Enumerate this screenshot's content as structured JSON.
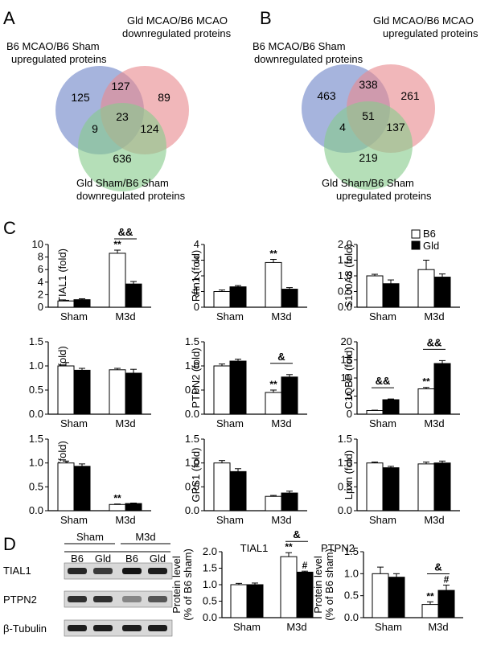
{
  "panel_letters": {
    "A": "A",
    "B": "B",
    "C": "C",
    "D": "D"
  },
  "venn_a": {
    "set_labels": [
      [
        "B6 MCAO/B6 Sham",
        "upregulated proteins"
      ],
      [
        "Gld MCAO/B6 MCAO",
        "downregulated proteins"
      ],
      [
        "Gld Sham/B6 Sham",
        "downregulated proteins"
      ]
    ],
    "counts": {
      "a_only": "125",
      "ab": "127",
      "b_only": "89",
      "ac": "9",
      "abc": "23",
      "bc": "124",
      "c_only": "636"
    }
  },
  "venn_b": {
    "set_labels": [
      [
        "B6 MCAO/B6 Sham",
        "downregulated proteins"
      ],
      [
        "Gld MCAO/B6 MCAO",
        "upregulated proteins"
      ],
      [
        "Gld Sham/B6 Sham",
        "upregulated proteins"
      ]
    ],
    "counts": {
      "a_only": "463",
      "ab": "338",
      "b_only": "261",
      "ac": "4",
      "abc": "51",
      "bc": "137",
      "c_only": "219"
    }
  },
  "venn_colors": {
    "blue": "#6f86c8",
    "red": "#e98a8f",
    "green": "#88cc8c"
  },
  "legend": {
    "items": [
      {
        "name": "B6",
        "color": "#ffffff"
      },
      {
        "name": "Gld",
        "color": "#000000"
      }
    ],
    "placement": "top-right of panel C"
  },
  "western_blot": {
    "group_labels": [
      "Sham",
      "M3d"
    ],
    "lane_labels": [
      "B6",
      "Gld",
      "B6",
      "Gld"
    ],
    "row_labels": [
      "TIAL1",
      "PTPN2",
      "β-Tubulin"
    ],
    "band_intensity": [
      [
        0.85,
        0.75,
        0.95,
        0.9
      ],
      [
        0.8,
        0.8,
        0.35,
        0.6
      ],
      [
        0.9,
        0.9,
        0.9,
        0.9
      ]
    ]
  },
  "chart_data": [
    {
      "type": "bar",
      "ylabel": "TIAL1 (fold)",
      "categories": [
        "Sham",
        "M3d"
      ],
      "ylim": [
        0,
        10
      ],
      "yticks": [
        0,
        2,
        4,
        6,
        8,
        10
      ],
      "series": [
        {
          "name": "B6",
          "values": [
            1.0,
            8.6
          ],
          "errors": [
            0.1,
            0.5
          ]
        },
        {
          "name": "Gld",
          "values": [
            1.2,
            3.7
          ],
          "errors": [
            0.15,
            0.4
          ]
        }
      ],
      "annotations": [
        {
          "text": "**",
          "category": 1,
          "series": 0
        },
        {
          "text": "&&",
          "bracket": [
            1,
            0,
            1,
            1
          ]
        }
      ]
    },
    {
      "type": "bar",
      "ylabel": "Rftn1 (fold)",
      "categories": [
        "Sham",
        "M3d"
      ],
      "ylim": [
        0,
        4
      ],
      "yticks": [
        0,
        1,
        2,
        3,
        4
      ],
      "series": [
        {
          "name": "B6",
          "values": [
            1.0,
            2.85
          ],
          "errors": [
            0.1,
            0.2
          ]
        },
        {
          "name": "Gld",
          "values": [
            1.3,
            1.15
          ],
          "errors": [
            0.08,
            0.1
          ]
        }
      ],
      "annotations": [
        {
          "text": "**",
          "category": 1,
          "series": 0
        }
      ]
    },
    {
      "type": "bar",
      "ylabel": "S100A8 (fold)",
      "categories": [
        "Sham",
        "M3d"
      ],
      "ylim": [
        0,
        2.0
      ],
      "yticks": [
        0,
        0.5,
        1.0,
        1.5,
        2.0
      ],
      "series": [
        {
          "name": "B6",
          "values": [
            1.0,
            1.2
          ],
          "errors": [
            0.05,
            0.3
          ]
        },
        {
          "name": "Gld",
          "values": [
            0.75,
            0.96
          ],
          "errors": [
            0.12,
            0.1
          ]
        }
      ],
      "annotations": []
    },
    {
      "type": "bar",
      "ylabel": "S100A9 (fold)",
      "categories": [
        "Sham",
        "M3d"
      ],
      "ylim": [
        0,
        1.5
      ],
      "yticks": [
        0,
        0.5,
        1.0,
        1.5
      ],
      "series": [
        {
          "name": "B6",
          "values": [
            1.0,
            0.92
          ],
          "errors": [
            0.07,
            0.03
          ]
        },
        {
          "name": "Gld",
          "values": [
            0.91,
            0.85
          ],
          "errors": [
            0.04,
            0.08
          ]
        }
      ],
      "annotations": []
    },
    {
      "type": "bar",
      "ylabel": "PTPN2 (fold)",
      "categories": [
        "Sham",
        "M3d"
      ],
      "ylim": [
        0,
        1.5
      ],
      "yticks": [
        0,
        0.5,
        1.0,
        1.5
      ],
      "series": [
        {
          "name": "B6",
          "values": [
            1.0,
            0.45
          ],
          "errors": [
            0.04,
            0.05
          ]
        },
        {
          "name": "Gld",
          "values": [
            1.1,
            0.77
          ],
          "errors": [
            0.04,
            0.05
          ]
        }
      ],
      "annotations": [
        {
          "text": "**",
          "category": 1,
          "series": 0
        },
        {
          "text": "&",
          "bracket": [
            1,
            0,
            1,
            1
          ]
        }
      ]
    },
    {
      "type": "bar",
      "ylabel": "C1QBP (fold)",
      "categories": [
        "Sham",
        "M3d"
      ],
      "ylim": [
        0,
        20
      ],
      "yticks": [
        0,
        5,
        10,
        15,
        20
      ],
      "series": [
        {
          "name": "B6",
          "values": [
            1.0,
            7.0
          ],
          "errors": [
            0.1,
            0.4
          ]
        },
        {
          "name": "Gld",
          "values": [
            4.0,
            14.0
          ],
          "errors": [
            0.2,
            0.8
          ]
        }
      ],
      "annotations": [
        {
          "text": "**",
          "category": 1,
          "series": 0
        },
        {
          "text": "&&",
          "bracket": [
            0,
            0,
            0,
            1
          ]
        },
        {
          "text": "&&",
          "bracket": [
            1,
            0,
            1,
            1
          ]
        }
      ]
    },
    {
      "type": "bar",
      "ylabel": "Sh3kbp1 (fold)",
      "categories": [
        "Sham",
        "M3d"
      ],
      "ylim": [
        0,
        1.5
      ],
      "yticks": [
        0,
        0.5,
        1.0,
        1.5
      ],
      "series": [
        {
          "name": "B6",
          "values": [
            1.0,
            0.13
          ],
          "errors": [
            0.04,
            0.01
          ]
        },
        {
          "name": "Gld",
          "values": [
            0.93,
            0.15
          ],
          "errors": [
            0.05,
            0.01
          ]
        }
      ],
      "annotations": [
        {
          "text": "**",
          "category": 1,
          "series": 0
        }
      ]
    },
    {
      "type": "bar",
      "ylabel": "GPS1 (fold)",
      "categories": [
        "Sham",
        "M3d"
      ],
      "ylim": [
        0,
        1.5
      ],
      "yticks": [
        0,
        0.5,
        1.0,
        1.5
      ],
      "series": [
        {
          "name": "B6",
          "values": [
            1.0,
            0.3
          ],
          "errors": [
            0.05,
            0.02
          ]
        },
        {
          "name": "Gld",
          "values": [
            0.82,
            0.37
          ],
          "errors": [
            0.06,
            0.04
          ]
        }
      ],
      "annotations": []
    },
    {
      "type": "bar",
      "ylabel": "Lpxn (fold)",
      "categories": [
        "Sham",
        "M3d"
      ],
      "ylim": [
        0,
        1.5
      ],
      "yticks": [
        0,
        0.5,
        1.0,
        1.5
      ],
      "series": [
        {
          "name": "B6",
          "values": [
            1.0,
            0.98
          ],
          "errors": [
            0.02,
            0.04
          ]
        },
        {
          "name": "Gld",
          "values": [
            0.9,
            1.0
          ],
          "errors": [
            0.03,
            0.04
          ]
        }
      ],
      "annotations": []
    },
    {
      "type": "bar",
      "title": "TIAL1",
      "ylabel": "Protein level",
      "ylabel2": "(% of B6 sham)",
      "categories": [
        "Sham",
        "M3d"
      ],
      "ylim": [
        0,
        2.0
      ],
      "yticks": [
        0,
        0.5,
        1.0,
        1.5,
        2.0
      ],
      "series": [
        {
          "name": "B6",
          "values": [
            1.0,
            1.85
          ],
          "errors": [
            0.04,
            0.12
          ]
        },
        {
          "name": "Gld",
          "values": [
            1.0,
            1.38
          ],
          "errors": [
            0.05,
            0.03
          ]
        }
      ],
      "annotations": [
        {
          "text": "**",
          "category": 1,
          "series": 0
        },
        {
          "text": "#",
          "category": 1,
          "series": 1
        },
        {
          "text": "&",
          "bracket": [
            1,
            0,
            1,
            1
          ]
        }
      ]
    },
    {
      "type": "bar",
      "title": "PTPN2",
      "ylabel": "Protein level",
      "ylabel2": "(% of B6 sham)",
      "categories": [
        "Sham",
        "M3d"
      ],
      "ylim": [
        0,
        1.5
      ],
      "yticks": [
        0,
        0.5,
        1.0,
        1.5
      ],
      "series": [
        {
          "name": "B6",
          "values": [
            1.0,
            0.3
          ],
          "errors": [
            0.15,
            0.06
          ]
        },
        {
          "name": "Gld",
          "values": [
            0.92,
            0.62
          ],
          "errors": [
            0.08,
            0.12
          ]
        }
      ],
      "annotations": [
        {
          "text": "**",
          "category": 1,
          "series": 0
        },
        {
          "text": "#",
          "category": 1,
          "series": 1
        },
        {
          "text": "&",
          "bracket": [
            1,
            0,
            1,
            1
          ]
        }
      ]
    }
  ]
}
